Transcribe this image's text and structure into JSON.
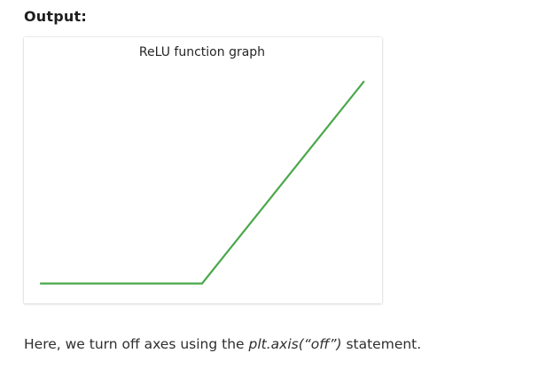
{
  "heading": "Output:",
  "caption": {
    "before": "Here, we turn off axes using the ",
    "code": "plt.axis(“off”)",
    "after": " statement."
  },
  "colors": {
    "line": "#4aa84b"
  },
  "chart_data": {
    "type": "line",
    "title": "ReLU function graph",
    "xlabel": "",
    "ylabel": "",
    "axis": "off",
    "grid": false,
    "x": [
      -10,
      0,
      10
    ],
    "y": [
      0,
      0,
      10
    ],
    "xlim": [
      -10.5,
      10.5
    ],
    "ylim": [
      -0.5,
      10.5
    ]
  }
}
